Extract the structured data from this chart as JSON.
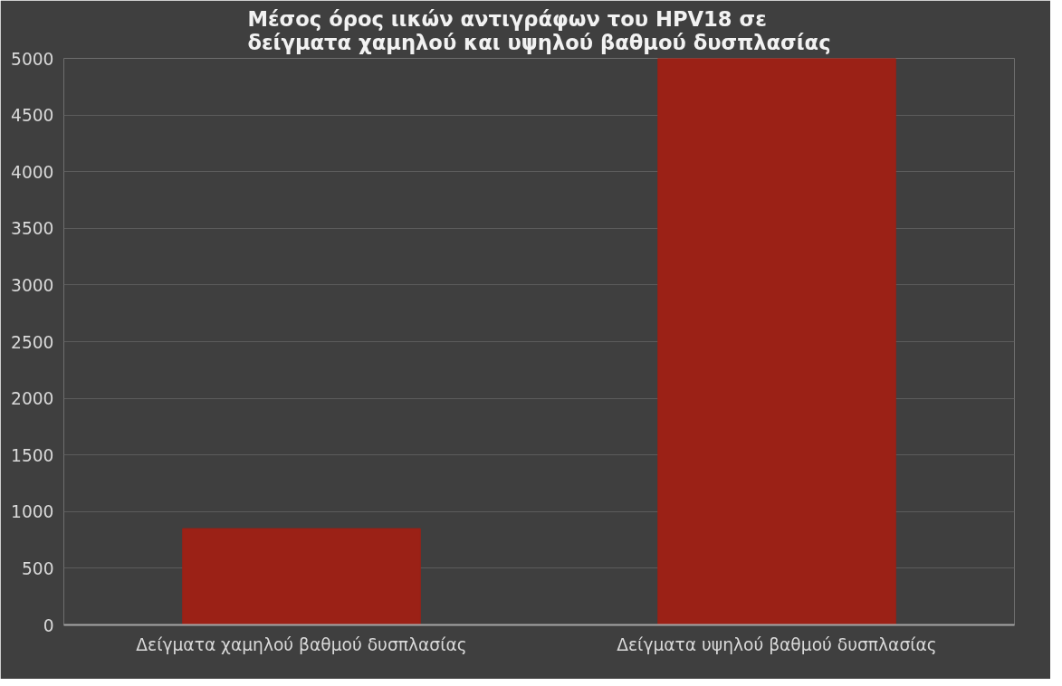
{
  "chart_data": {
    "type": "bar",
    "title": "Μέσος όρος ιικών αντιγράφων του HPV18 σε δείγματα χαμηλού και υψηλού βαθμού δυσπλασίας",
    "categories": [
      "Δείγματα χαμηλού βαθμού δυσπλασίας",
      "Δείγματα υψηλού βαθμού δυσπλασίας"
    ],
    "values": [
      850,
      5000
    ],
    "color": "#9b2116",
    "ylim": [
      0,
      5000
    ],
    "yticks": [
      0,
      500,
      1000,
      1500,
      2000,
      2500,
      3000,
      3500,
      4000,
      4500,
      5000
    ],
    "grid": "y"
  }
}
